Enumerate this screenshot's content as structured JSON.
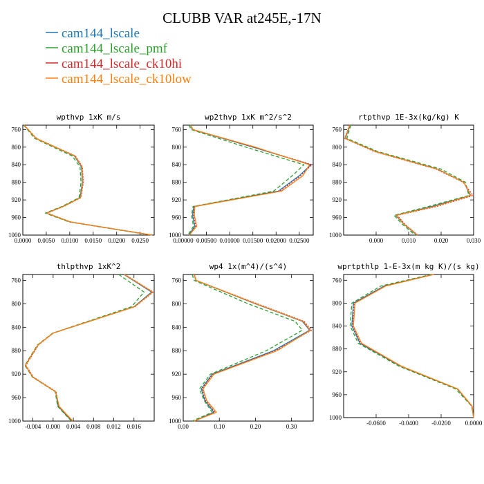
{
  "figure": {
    "title": "CLUBB VAR at245E,-17N",
    "legend": [
      {
        "name": "cam144_lscale",
        "color": "#1f77b4",
        "dash": ""
      },
      {
        "name": "cam144_lscale_pmf",
        "color": "#2ca02c",
        "dash": "5,3"
      },
      {
        "name": "cam144_lscale_ck10hi",
        "color": "#d62728",
        "dash": "2,2"
      },
      {
        "name": "cam144_lscale_ck10low",
        "color": "#ff7f0e",
        "dash": ""
      }
    ]
  },
  "chart_data": [
    {
      "type": "line",
      "title": "wpthvp  1xK m/s",
      "xlim": [
        0,
        0.028
      ],
      "ylim": [
        750,
        1000
      ],
      "yinverted": true,
      "xticks": [
        0,
        0.005,
        0.01,
        0.015,
        0.02,
        0.025
      ],
      "xticklabels": [
        "0.0000",
        "0.0050",
        "0.0100",
        "0.0150",
        "0.0200",
        "0.0250"
      ],
      "yticks": [
        760,
        800,
        840,
        880,
        920,
        960,
        1000
      ],
      "y": [
        750,
        780,
        820,
        845,
        880,
        915,
        935,
        950,
        970,
        1000
      ],
      "series": [
        {
          "name": "cam144_lscale",
          "color": "#1f77b4",
          "dash": "",
          "values": [
            0.0003,
            0.0028,
            0.011,
            0.0125,
            0.0127,
            0.0122,
            0.0085,
            0.005,
            0.01,
            0.0275
          ]
        },
        {
          "name": "cam144_lscale_pmf",
          "color": "#2ca02c",
          "dash": "5,3",
          "values": [
            0.0002,
            0.0025,
            0.0105,
            0.0122,
            0.0124,
            0.012,
            0.0083,
            0.0048,
            0.0098,
            0.0273
          ]
        },
        {
          "name": "cam144_lscale_ck10hi",
          "color": "#d62728",
          "dash": "2,2",
          "values": [
            0.0003,
            0.0029,
            0.0112,
            0.0127,
            0.0129,
            0.0124,
            0.0087,
            0.0052,
            0.0102,
            0.0276
          ]
        },
        {
          "name": "cam144_lscale_ck10low",
          "color": "#ff7f0e",
          "dash": "",
          "values": [
            0.0003,
            0.0028,
            0.0111,
            0.0126,
            0.0128,
            0.0123,
            0.0086,
            0.0051,
            0.0101,
            0.0276
          ]
        }
      ]
    },
    {
      "type": "line",
      "title": "wp2thvp  1xK m^2/s^2",
      "xlim": [
        0,
        0.028
      ],
      "ylim": [
        750,
        1000
      ],
      "yinverted": true,
      "xticks": [
        0,
        0.005,
        0.01,
        0.015,
        0.02,
        0.025
      ],
      "xticklabels": [
        "0.00000",
        "0.00500",
        "0.01000",
        "0.01500",
        "0.02000",
        "0.02500"
      ],
      "yticks": [
        760,
        800,
        840,
        880,
        920,
        960,
        1000
      ],
      "y": [
        750,
        760,
        800,
        840,
        865,
        900,
        935,
        955,
        980,
        1000
      ],
      "series": [
        {
          "name": "cam144_lscale",
          "color": "#1f77b4",
          "dash": "",
          "values": [
            0.0015,
            0.002,
            0.015,
            0.0275,
            0.025,
            0.0205,
            0.0023,
            0.002,
            0.0025,
            0.0012
          ]
        },
        {
          "name": "cam144_lscale_pmf",
          "color": "#2ca02c",
          "dash": "5,3",
          "values": [
            0.0012,
            0.0017,
            0.0135,
            0.026,
            0.0235,
            0.0195,
            0.0021,
            0.0018,
            0.0022,
            0.001
          ]
        },
        {
          "name": "cam144_lscale_ck10hi",
          "color": "#d62728",
          "dash": "2,2",
          "values": [
            0.0016,
            0.0021,
            0.0152,
            0.0277,
            0.0253,
            0.0208,
            0.0024,
            0.0022,
            0.0027,
            0.0013
          ]
        },
        {
          "name": "cam144_lscale_ck10low",
          "color": "#ff7f0e",
          "dash": "",
          "values": [
            0.0016,
            0.0021,
            0.0155,
            0.0272,
            0.0258,
            0.0212,
            0.0025,
            0.0024,
            0.0029,
            0.0013
          ]
        }
      ]
    },
    {
      "type": "line",
      "title": "rtpthvp  1E-3x(kg/kg) K",
      "xlim": [
        -0.01,
        0.03
      ],
      "ylim": [
        750,
        1000
      ],
      "yinverted": true,
      "xticks": [
        0,
        0.01,
        0.02,
        0.03
      ],
      "xticklabels": [
        "0.000",
        "0.010",
        "0.020",
        "0.030"
      ],
      "yticks": [
        760,
        800,
        840,
        880,
        920,
        960,
        1000
      ],
      "y": [
        750,
        780,
        810,
        850,
        880,
        910,
        935,
        955,
        975,
        1000
      ],
      "series": [
        {
          "name": "cam144_lscale",
          "color": "#1f77b4",
          "dash": "",
          "values": [
            -0.008,
            -0.0095,
            0.0,
            0.019,
            0.027,
            0.029,
            0.017,
            0.006,
            0.0085,
            0.0125
          ]
        },
        {
          "name": "cam144_lscale_pmf",
          "color": "#2ca02c",
          "dash": "5,3",
          "values": [
            -0.0078,
            -0.009,
            0.0005,
            0.02,
            0.0275,
            0.0285,
            0.016,
            0.0055,
            0.008,
            0.012
          ]
        },
        {
          "name": "cam144_lscale_ck10hi",
          "color": "#d62728",
          "dash": "2,2",
          "values": [
            -0.0082,
            -0.0097,
            -0.0005,
            0.0185,
            0.0268,
            0.0298,
            0.0185,
            0.0065,
            0.0088,
            0.0128
          ]
        },
        {
          "name": "cam144_lscale_ck10low",
          "color": "#ff7f0e",
          "dash": "",
          "values": [
            -0.0081,
            -0.0096,
            -0.0002,
            0.0188,
            0.027,
            0.0292,
            0.0178,
            0.0062,
            0.0086,
            0.0127
          ]
        }
      ]
    },
    {
      "type": "line",
      "title": "thlpthvp  1xK^2",
      "xlim": [
        -0.006,
        0.02
      ],
      "ylim": [
        750,
        1000
      ],
      "yinverted": true,
      "xticks": [
        -0.004,
        0.0,
        0.004,
        0.008,
        0.012,
        0.016
      ],
      "xticklabels": [
        "-0.004",
        "0.000",
        "0.004",
        "0.008",
        "0.012",
        "0.016"
      ],
      "yticks": [
        760,
        800,
        840,
        880,
        920,
        960,
        1000
      ],
      "y": [
        750,
        780,
        805,
        850,
        870,
        905,
        925,
        950,
        975,
        1000
      ],
      "series": [
        {
          "name": "cam144_lscale",
          "color": "#1f77b4",
          "dash": "",
          "values": [
            0.014,
            0.0195,
            0.016,
            0.0,
            -0.003,
            -0.0055,
            -0.004,
            0.0005,
            0.001,
            0.0037
          ]
        },
        {
          "name": "cam144_lscale_pmf",
          "color": "#2ca02c",
          "dash": "5,3",
          "values": [
            0.013,
            0.018,
            0.0155,
            -0.0001,
            -0.0031,
            -0.0056,
            -0.0041,
            0.0004,
            0.0009,
            0.0036
          ]
        },
        {
          "name": "cam144_lscale_ck10hi",
          "color": "#d62728",
          "dash": "2,2",
          "values": [
            0.0142,
            0.0198,
            0.0162,
            0.0,
            -0.0029,
            -0.0054,
            -0.0039,
            0.0006,
            0.0011,
            0.0038
          ]
        },
        {
          "name": "cam144_lscale_ck10low",
          "color": "#ff7f0e",
          "dash": "",
          "values": [
            0.0141,
            0.0197,
            0.0161,
            0.0,
            -0.003,
            -0.0055,
            -0.004,
            0.0005,
            0.0012,
            0.0039
          ]
        }
      ]
    },
    {
      "type": "line",
      "title": "wp4  1x(m^4)/(s^4)",
      "xlim": [
        0,
        0.36
      ],
      "ylim": [
        750,
        1000
      ],
      "yinverted": true,
      "xticks": [
        0,
        0.1,
        0.2,
        0.3
      ],
      "xticklabels": [
        "0.00",
        "0.10",
        "0.20",
        "0.30"
      ],
      "yticks": [
        760,
        800,
        840,
        880,
        920,
        960,
        1000
      ],
      "y": [
        750,
        760,
        800,
        830,
        845,
        880,
        920,
        945,
        965,
        985,
        1000
      ],
      "series": [
        {
          "name": "cam144_lscale",
          "color": "#1f77b4",
          "dash": "",
          "values": [
            0.03,
            0.035,
            0.2,
            0.33,
            0.35,
            0.25,
            0.08,
            0.05,
            0.06,
            0.085,
            0.03
          ]
        },
        {
          "name": "cam144_lscale_pmf",
          "color": "#2ca02c",
          "dash": "5,3",
          "values": [
            0.025,
            0.03,
            0.18,
            0.31,
            0.33,
            0.23,
            0.075,
            0.045,
            0.058,
            0.08,
            0.025
          ]
        },
        {
          "name": "cam144_lscale_ck10hi",
          "color": "#d62728",
          "dash": "2,2",
          "values": [
            0.031,
            0.036,
            0.205,
            0.335,
            0.355,
            0.255,
            0.082,
            0.052,
            0.062,
            0.088,
            0.031
          ]
        },
        {
          "name": "cam144_lscale_ck10low",
          "color": "#ff7f0e",
          "dash": "",
          "values": [
            0.03,
            0.036,
            0.202,
            0.332,
            0.352,
            0.26,
            0.085,
            0.055,
            0.065,
            0.092,
            0.03
          ]
        }
      ]
    },
    {
      "type": "line",
      "title": "wprtpthlp  1-E-3x(m kg K)/(s kg)",
      "xlim": [
        -0.08,
        0.0
      ],
      "ylim": [
        750,
        1000
      ],
      "yinverted": true,
      "xticks": [
        -0.06,
        -0.04,
        -0.02,
        0.0
      ],
      "xticklabels": [
        "-0.0600",
        "-0.0400",
        "-0.0200",
        "0.0000"
      ],
      "yticks": [
        760,
        800,
        840,
        880,
        920,
        960,
        1000
      ],
      "y": [
        750,
        770,
        800,
        840,
        870,
        910,
        950,
        980,
        1000
      ],
      "series": [
        {
          "name": "cam144_lscale",
          "color": "#1f77b4",
          "dash": "",
          "values": [
            -0.025,
            -0.055,
            -0.074,
            -0.075,
            -0.07,
            -0.045,
            -0.01,
            -0.001,
            0.0
          ]
        },
        {
          "name": "cam144_lscale_pmf",
          "color": "#2ca02c",
          "dash": "5,3",
          "values": [
            -0.026,
            -0.057,
            -0.075,
            -0.076,
            -0.071,
            -0.046,
            -0.011,
            -0.0012,
            0.0
          ]
        },
        {
          "name": "cam144_lscale_ck10hi",
          "color": "#d62728",
          "dash": "2,2",
          "values": [
            -0.0248,
            -0.0545,
            -0.0735,
            -0.0745,
            -0.0695,
            -0.0448,
            -0.0098,
            -0.001,
            0.0
          ]
        },
        {
          "name": "cam144_lscale_ck10low",
          "color": "#ff7f0e",
          "dash": "",
          "values": [
            -0.0245,
            -0.054,
            -0.073,
            -0.074,
            -0.069,
            -0.0445,
            -0.0097,
            -0.0009,
            0.0
          ]
        }
      ]
    }
  ]
}
